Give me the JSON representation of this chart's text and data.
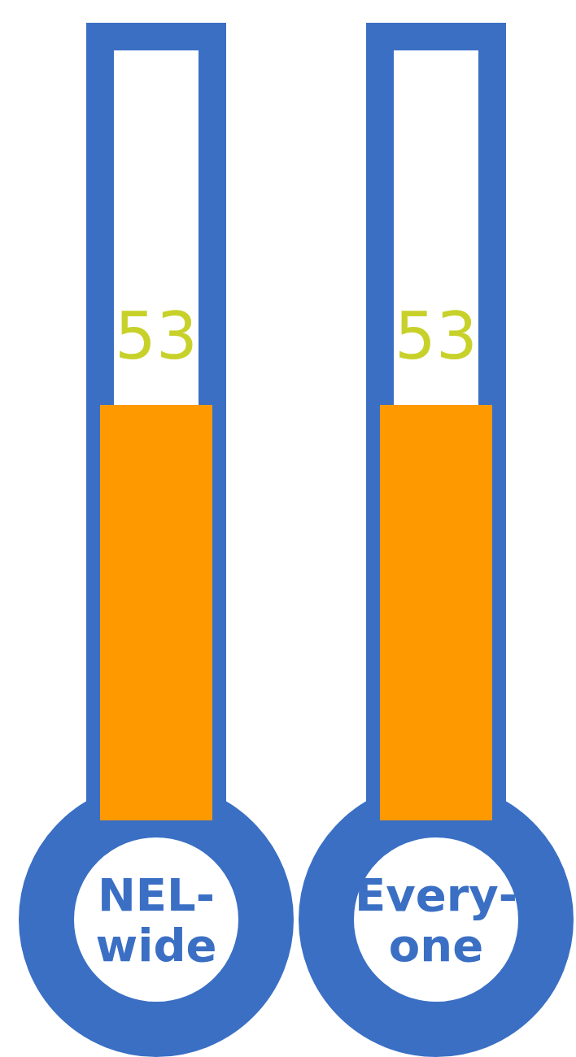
{
  "chart_data": {
    "type": "bar",
    "categories": [
      "NEL-wide",
      "Every-one"
    ],
    "values": [
      53,
      53
    ],
    "color": "#ff9900",
    "ylim": [
      0,
      100
    ],
    "data_labels": true,
    "tick_labels": "x"
  }
}
